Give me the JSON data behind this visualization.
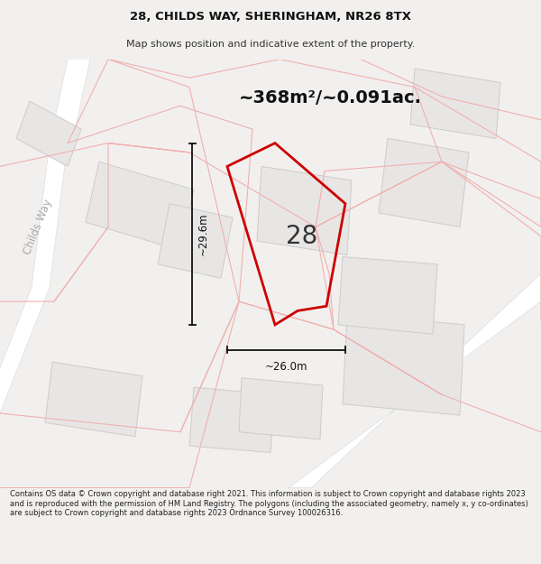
{
  "title_line1": "28, CHILDS WAY, SHERINGHAM, NR26 8TX",
  "title_line2": "Map shows position and indicative extent of the property.",
  "area_text": "~368m²/~0.091ac.",
  "property_number": "28",
  "dim_vertical": "~29.6m",
  "dim_horizontal": "~26.0m",
  "road_label": "Childs Way",
  "footer_text": "Contains OS data © Crown copyright and database right 2021. This information is subject to Crown copyright and database rights 2023 and is reproduced with the permission of HM Land Registry. The polygons (including the associated geometry, namely x, y co-ordinates) are subject to Crown copyright and database rights 2023 Ordnance Survey 100026316.",
  "bg_color": "#f2f0ee",
  "map_bg_color": "#ffffff",
  "road_color": "#ffffff",
  "property_outline_color": "#cc0000",
  "plot_line_color": "#f0b0b0",
  "building_fill": "#e8e6e4",
  "building_edge": "#cccccc",
  "dim_line_color": "#111111",
  "text_color": "#111111",
  "road_label_color": "#aaaaaa"
}
